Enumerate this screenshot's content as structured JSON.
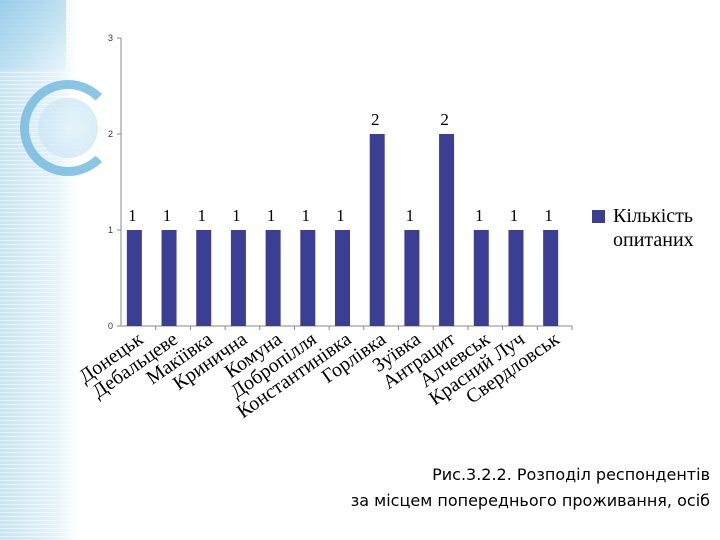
{
  "chart_data": {
    "type": "bar",
    "categories": [
      "Донецьк",
      "Дебальцеве",
      "Макіївка",
      "Кринична",
      "Комуна",
      "Добропілля",
      "Константинівка",
      "Горлівка",
      "Зуївка",
      "Антрацит",
      "Алчевськ",
      "Красний Луч",
      "Свердловськ"
    ],
    "series": [
      {
        "name": "Кількість опитаних",
        "values": [
          1,
          1,
          1,
          1,
          1,
          1,
          1,
          2,
          1,
          2,
          1,
          1,
          1
        ],
        "color": "#3b3f93"
      }
    ],
    "yticks": [
      "0",
      "1",
      "2",
      "3"
    ],
    "ylim": [
      0,
      3
    ],
    "grid": false,
    "legend": "right",
    "data_labels": true
  },
  "caption": {
    "line1": "Рис.3.2.2. Розподіл респондентів",
    "line2": "за місцем попереднього проживання, осіб"
  }
}
